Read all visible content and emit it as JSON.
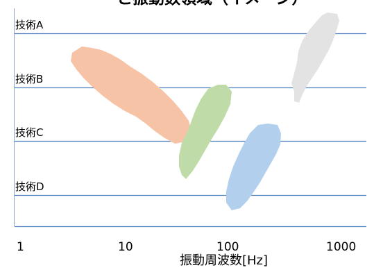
{
  "title_fragment": "と振動数領域（イメージ）",
  "rows": [
    {
      "label": "技術A"
    },
    {
      "label": "技術B"
    },
    {
      "label": "技術C"
    },
    {
      "label": "技術D"
    }
  ],
  "x_axis": {
    "scale": "log",
    "ticks": [
      "1",
      "10",
      "100",
      "1000"
    ],
    "label": "振動周波数[Hz]"
  },
  "regions": [
    {
      "name": "技術A の振動数領域",
      "row": "技術A",
      "color": "#e3e3e3"
    },
    {
      "name": "技術B の振動数領域",
      "row": "技術B",
      "color": "#f7c3a6"
    },
    {
      "name": "技術C の振動数領域",
      "row": "技術C",
      "color": "#bfdca8"
    },
    {
      "name": "技術D の振動数領域",
      "row": "技術D",
      "color": "#b3cfee"
    }
  ],
  "colors": {
    "gridline": "#4f7fbf",
    "axis": "#8fa8c8"
  }
}
